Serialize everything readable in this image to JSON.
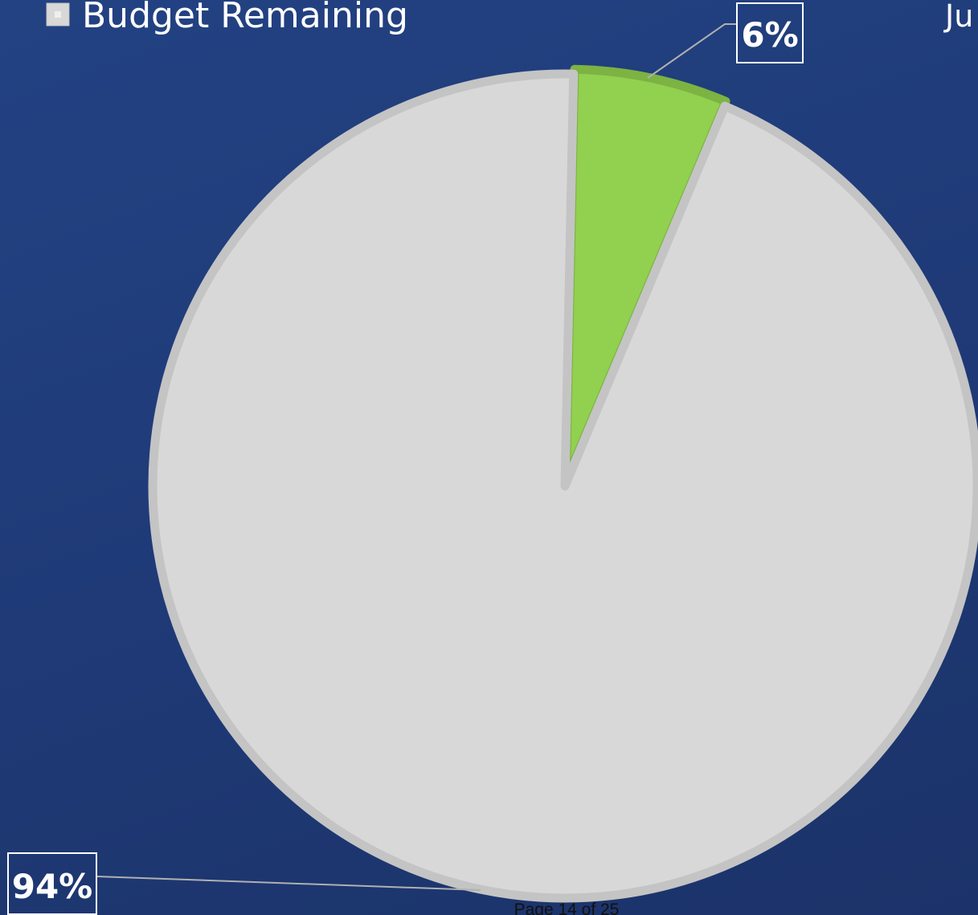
{
  "corner_text": "Ju",
  "footer": {
    "page_label": "Page 14 of 25"
  },
  "chart_data": {
    "type": "pie",
    "title": "",
    "start_angle_deg": 0,
    "direction": "clockwise",
    "slices": [
      {
        "name": "",
        "value": 6,
        "label": "6%",
        "color": "#92d050",
        "edge_color": "#7cb342"
      },
      {
        "name": "Budget Remaining",
        "value": 94,
        "label": "94%",
        "color": "#d8d8d8",
        "edge_color": "#c4c4c4"
      }
    ],
    "legend": {
      "placement": "top-left",
      "entries": [
        {
          "label": "Budget Remaining",
          "color": "#d8d8d8"
        }
      ]
    },
    "colors": {
      "background": "#213f7e",
      "label_border": "#ffffff",
      "leader_line": "#b0b0b0"
    }
  }
}
